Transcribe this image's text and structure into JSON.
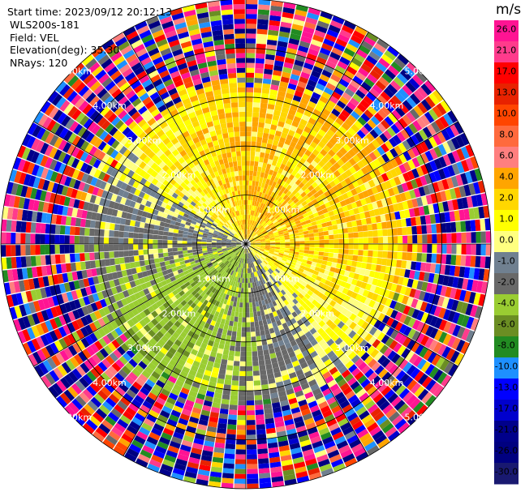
{
  "info": {
    "start_time": "Start time: 2023/09/12 20:12:13",
    "instrument": "WLS200s-181",
    "field": "Field: VEL",
    "elevation": "Elevation(deg): 35.30",
    "nrays": "NRays: 120"
  },
  "chart_data": {
    "type": "heatmap",
    "projection": "polar-ppi",
    "field": "VEL",
    "unit": "m/s",
    "elevation_deg": 35.3,
    "nrays": 120,
    "max_range_km": 5.0,
    "range_ring_labels": [
      "1.00km",
      "2.00km",
      "3.00km",
      "4.00km",
      "5.00km"
    ],
    "colorbar": {
      "unit_label": "m/s",
      "tick_labels": [
        "26.0",
        "21.0",
        "17.0",
        "13.0",
        "10.0",
        "8.0",
        "6.0",
        "4.0",
        "2.0",
        "1.0",
        "0.0",
        "-1.0",
        "-2.0",
        "-4.0",
        "-6.0",
        "-8.0",
        "-10.0",
        "-13.0",
        "-17.0",
        "-21.0",
        "-26.0",
        "-30.0"
      ],
      "colors": [
        "#ff1493",
        "#ff3b8c",
        "#ff0000",
        "#e82200",
        "#ff4500",
        "#ff6a3d",
        "#ff7f7f",
        "#ffa500",
        "#ffd700",
        "#ffff00",
        "#ffff80",
        "#708090",
        "#696969",
        "#9acd32",
        "#6b8e23",
        "#228b22",
        "#1e90ff",
        "#0000ff",
        "#0000cd",
        "#00008b",
        "#000080",
        "#191970"
      ]
    },
    "approx_velocity_by_azimuth": [
      {
        "azimuth_deg": 0,
        "velocity": 2.0
      },
      {
        "azimuth_deg": 45,
        "velocity": 2.0
      },
      {
        "azimuth_deg": 90,
        "velocity": 1.5
      },
      {
        "azimuth_deg": 135,
        "velocity": 0.0
      },
      {
        "azimuth_deg": 180,
        "velocity": -4.0
      },
      {
        "azimuth_deg": 225,
        "velocity": -6.0
      },
      {
        "azimuth_deg": 270,
        "velocity": -3.0
      },
      {
        "azimuth_deg": 315,
        "velocity": 0.5
      }
    ],
    "clean_data_range_km": 3.0
  }
}
